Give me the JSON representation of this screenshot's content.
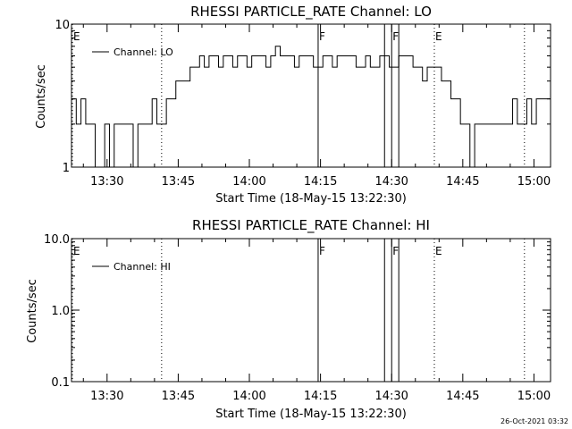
{
  "footer": {
    "timestamp": "26-Oct-2021 03:32"
  },
  "chart_data": [
    {
      "type": "line",
      "title": "RHESSI PARTICLE_RATE Channel: LO",
      "xlabel": "Start Time (18-May-15 13:22:30)",
      "ylabel": "Counts/sec",
      "yscale": "log",
      "ylim": [
        1,
        10
      ],
      "ytick_labels": [
        "1",
        "10"
      ],
      "xlim_minutes": [
        0,
        101
      ],
      "x_tick_labels": [
        "13:30",
        "13:45",
        "14:00",
        "14:15",
        "14:30",
        "14:45",
        "15:00"
      ],
      "legend": "Channel: LO",
      "legend_location": "upper-left",
      "grid": false,
      "markers": [
        {
          "label": "E",
          "time": "13:22:30",
          "style": "dotted"
        },
        {
          "label": "",
          "time": "13:41:30",
          "style": "dotted"
        },
        {
          "label": "F",
          "time": "14:14:30",
          "style": "solid"
        },
        {
          "label": "",
          "time": "14:28:30",
          "style": "solid"
        },
        {
          "label": "F",
          "time": "14:30:00",
          "style": "solid"
        },
        {
          "label": "",
          "time": "14:31:30",
          "style": "solid"
        },
        {
          "label": "E",
          "time": "14:39:00",
          "style": "dotted"
        },
        {
          "label": "",
          "time": "14:58:00",
          "style": "dotted"
        }
      ],
      "series": [
        {
          "name": "Channel: LO",
          "values": [
            [
              0,
              3
            ],
            [
              1,
              2
            ],
            [
              2,
              3
            ],
            [
              3,
              2
            ],
            [
              4,
              2
            ],
            [
              5,
              1
            ],
            [
              6,
              1
            ],
            [
              7,
              2
            ],
            [
              8,
              1
            ],
            [
              9,
              2
            ],
            [
              10,
              2
            ],
            [
              11,
              2
            ],
            [
              12,
              2
            ],
            [
              13,
              1
            ],
            [
              14,
              2
            ],
            [
              15,
              2
            ],
            [
              16,
              2
            ],
            [
              17,
              3
            ],
            [
              18,
              2
            ],
            [
              19,
              2
            ],
            [
              20,
              3
            ],
            [
              21,
              3
            ],
            [
              22,
              4
            ],
            [
              23,
              4
            ],
            [
              24,
              4
            ],
            [
              25,
              5
            ],
            [
              26,
              5
            ],
            [
              27,
              6
            ],
            [
              28,
              5
            ],
            [
              29,
              6
            ],
            [
              30,
              6
            ],
            [
              31,
              5
            ],
            [
              32,
              6
            ],
            [
              33,
              6
            ],
            [
              34,
              5
            ],
            [
              35,
              6
            ],
            [
              36,
              6
            ],
            [
              37,
              5
            ],
            [
              38,
              6
            ],
            [
              39,
              6
            ],
            [
              40,
              6
            ],
            [
              41,
              5
            ],
            [
              42,
              6
            ],
            [
              43,
              7
            ],
            [
              44,
              6
            ],
            [
              45,
              6
            ],
            [
              46,
              6
            ],
            [
              47,
              5
            ],
            [
              48,
              6
            ],
            [
              49,
              6
            ],
            [
              50,
              6
            ],
            [
              51,
              5
            ],
            [
              52,
              5
            ],
            [
              53,
              6
            ],
            [
              54,
              6
            ],
            [
              55,
              5
            ],
            [
              56,
              6
            ],
            [
              57,
              6
            ],
            [
              58,
              6
            ],
            [
              59,
              6
            ],
            [
              60,
              5
            ],
            [
              61,
              5
            ],
            [
              62,
              6
            ],
            [
              63,
              5
            ],
            [
              64,
              5
            ],
            [
              65,
              6
            ],
            [
              66,
              6
            ],
            [
              67,
              5
            ],
            [
              68,
              5
            ],
            [
              69,
              6
            ],
            [
              70,
              6
            ],
            [
              71,
              6
            ],
            [
              72,
              5
            ],
            [
              73,
              5
            ],
            [
              74,
              4
            ],
            [
              75,
              5
            ],
            [
              76,
              5
            ],
            [
              77,
              5
            ],
            [
              78,
              4
            ],
            [
              79,
              4
            ],
            [
              80,
              3
            ],
            [
              81,
              3
            ],
            [
              82,
              2
            ],
            [
              83,
              2
            ],
            [
              84,
              1
            ],
            [
              85,
              2
            ],
            [
              86,
              2
            ],
            [
              87,
              2
            ],
            [
              88,
              2
            ],
            [
              89,
              2
            ],
            [
              90,
              2
            ],
            [
              91,
              2
            ],
            [
              92,
              2
            ],
            [
              93,
              3
            ],
            [
              94,
              2
            ],
            [
              95,
              2
            ],
            [
              96,
              3
            ],
            [
              97,
              2
            ],
            [
              98,
              3
            ],
            [
              99,
              3
            ],
            [
              100,
              3
            ]
          ]
        }
      ]
    },
    {
      "type": "line",
      "title": "RHESSI PARTICLE_RATE Channel: HI",
      "xlabel": "Start Time (18-May-15 13:22:30)",
      "ylabel": "Counts/sec",
      "yscale": "log",
      "ylim": [
        0.1,
        10
      ],
      "ytick_labels": [
        "0.1",
        "1.0",
        "10.0"
      ],
      "xlim_minutes": [
        0,
        101
      ],
      "x_tick_labels": [
        "13:30",
        "13:45",
        "14:00",
        "14:15",
        "14:30",
        "14:45",
        "15:00"
      ],
      "legend": "Channel: HI",
      "legend_location": "upper-left",
      "grid": false,
      "markers": [
        {
          "label": "E",
          "time": "13:22:30",
          "style": "dotted"
        },
        {
          "label": "",
          "time": "13:41:30",
          "style": "dotted"
        },
        {
          "label": "F",
          "time": "14:14:30",
          "style": "solid"
        },
        {
          "label": "",
          "time": "14:28:30",
          "style": "solid"
        },
        {
          "label": "F",
          "time": "14:30:00",
          "style": "solid"
        },
        {
          "label": "",
          "time": "14:31:30",
          "style": "solid"
        },
        {
          "label": "E",
          "time": "14:39:00",
          "style": "dotted"
        },
        {
          "label": "",
          "time": "14:58:00",
          "style": "dotted"
        }
      ],
      "series": [
        {
          "name": "Channel: HI",
          "values": []
        }
      ]
    }
  ]
}
